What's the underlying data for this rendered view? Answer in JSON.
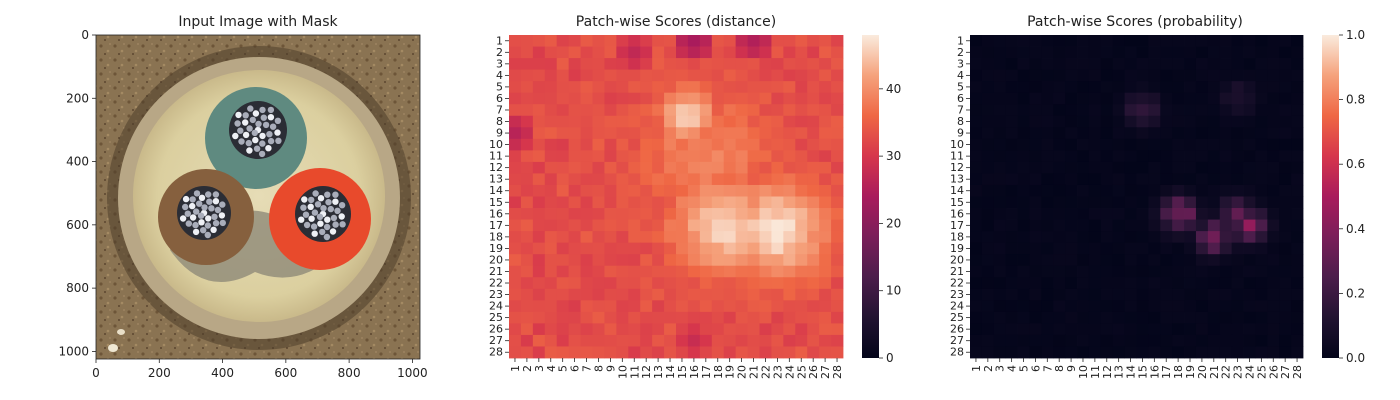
{
  "chart_data": [
    {
      "type": "image",
      "title": "Input Image with Mask",
      "xticks": [
        "0",
        "200",
        "400",
        "600",
        "800",
        "1000"
      ],
      "yticks": [
        "0",
        "200",
        "400",
        "600",
        "800",
        "1000"
      ],
      "xlim": [
        0,
        1024
      ],
      "ylim": [
        1024,
        0
      ],
      "content": "circular cable cross-section with three colored conductors (green, brown, red) on a rusty background"
    },
    {
      "type": "heatmap",
      "title": "Patch-wise Scores (distance)",
      "rows": 28,
      "cols": 28,
      "xticklabels": [
        "1",
        "2",
        "3",
        "4",
        "5",
        "6",
        "7",
        "8",
        "9",
        "10",
        "11",
        "12",
        "13",
        "14",
        "15",
        "16",
        "17",
        "18",
        "19",
        "20",
        "21",
        "22",
        "23",
        "24",
        "25",
        "26",
        "27",
        "28"
      ],
      "yticklabels": [
        "1",
        "2",
        "3",
        "4",
        "5",
        "6",
        "7",
        "8",
        "9",
        "10",
        "11",
        "12",
        "13",
        "14",
        "15",
        "16",
        "17",
        "18",
        "19",
        "20",
        "21",
        "22",
        "23",
        "24",
        "25",
        "26",
        "27",
        "28"
      ],
      "colormap": "rocket",
      "vmin": 0,
      "vmax": 48,
      "colorbar_ticks": [
        "0",
        "10",
        "20",
        "30",
        "40"
      ],
      "base_value": 32,
      "hotspots": [
        {
          "row": 7.5,
          "col": 15.5,
          "value": 46,
          "spread": 1.6
        },
        {
          "row": 17,
          "col": 18.5,
          "value": 46,
          "spread": 3
        },
        {
          "row": 17.5,
          "col": 23,
          "value": 47,
          "spread": 3
        },
        {
          "row": 11,
          "col": 17,
          "value": 39,
          "spread": 4
        }
      ],
      "low_spots": [
        {
          "row": 1,
          "col": 16,
          "value": 24
        },
        {
          "row": 1,
          "col": 21,
          "value": 25
        },
        {
          "row": 2,
          "col": 11,
          "value": 27
        },
        {
          "row": 9,
          "col": 1,
          "value": 26
        },
        {
          "row": 27,
          "col": 16,
          "value": 28
        }
      ]
    },
    {
      "type": "heatmap",
      "title": "Patch-wise Scores (probability)",
      "rows": 28,
      "cols": 28,
      "xticklabels": [
        "1",
        "2",
        "3",
        "4",
        "5",
        "6",
        "7",
        "8",
        "9",
        "10",
        "11",
        "12",
        "13",
        "14",
        "15",
        "16",
        "17",
        "18",
        "19",
        "20",
        "21",
        "22",
        "23",
        "24",
        "25",
        "26",
        "27",
        "28"
      ],
      "yticklabels": [
        "1",
        "2",
        "3",
        "4",
        "5",
        "6",
        "7",
        "8",
        "9",
        "10",
        "11",
        "12",
        "13",
        "14",
        "15",
        "16",
        "17",
        "18",
        "19",
        "20",
        "21",
        "22",
        "23",
        "24",
        "25",
        "26",
        "27",
        "28"
      ],
      "colormap": "rocket",
      "vmin": 0,
      "vmax": 1,
      "colorbar_ticks": [
        "0.0",
        "0.2",
        "0.4",
        "0.6",
        "0.8",
        "1.0"
      ],
      "base_value": 0.02,
      "hotspots": [
        {
          "row": 16,
          "col": 18,
          "value": 0.5
        },
        {
          "row": 17,
          "col": 24,
          "value": 0.48
        },
        {
          "row": 18,
          "col": 21,
          "value": 0.45
        },
        {
          "row": 16,
          "col": 23,
          "value": 0.35
        },
        {
          "row": 7,
          "col": 15,
          "value": 0.22
        },
        {
          "row": 6,
          "col": 23,
          "value": 0.15
        }
      ]
    }
  ]
}
